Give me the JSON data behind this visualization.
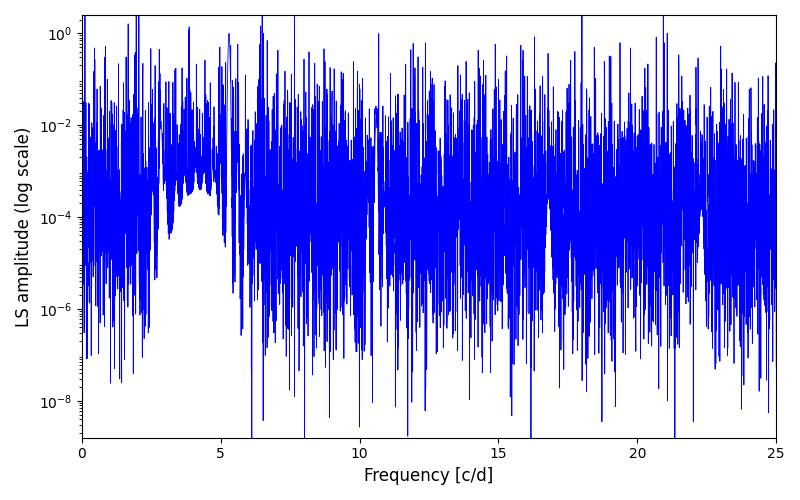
{
  "line_color": "#0000ff",
  "xlabel": "Frequency [c/d]",
  "ylabel": "LS amplitude (log scale)",
  "xlim": [
    0,
    25
  ],
  "ymin": 1e-09,
  "ymax": 2.0,
  "freq_min": 0.005,
  "freq_max": 25.0,
  "n_points": 5000,
  "peak1_freq": 5.3,
  "peak1_amp": 1.0,
  "peak2_freq": 2.85,
  "peak2_amp": 0.012,
  "peak3_freq": 10.6,
  "peak3_amp": 0.018,
  "peak4_freq": 16.8,
  "peak4_amp": 0.00025,
  "peak5_freq": 22.3,
  "peak5_amp": 0.00015,
  "noise_base": 0.0001,
  "line_width": 0.6,
  "background_color": "#ffffff",
  "figsize": [
    8.0,
    5.0
  ],
  "dpi": 100
}
